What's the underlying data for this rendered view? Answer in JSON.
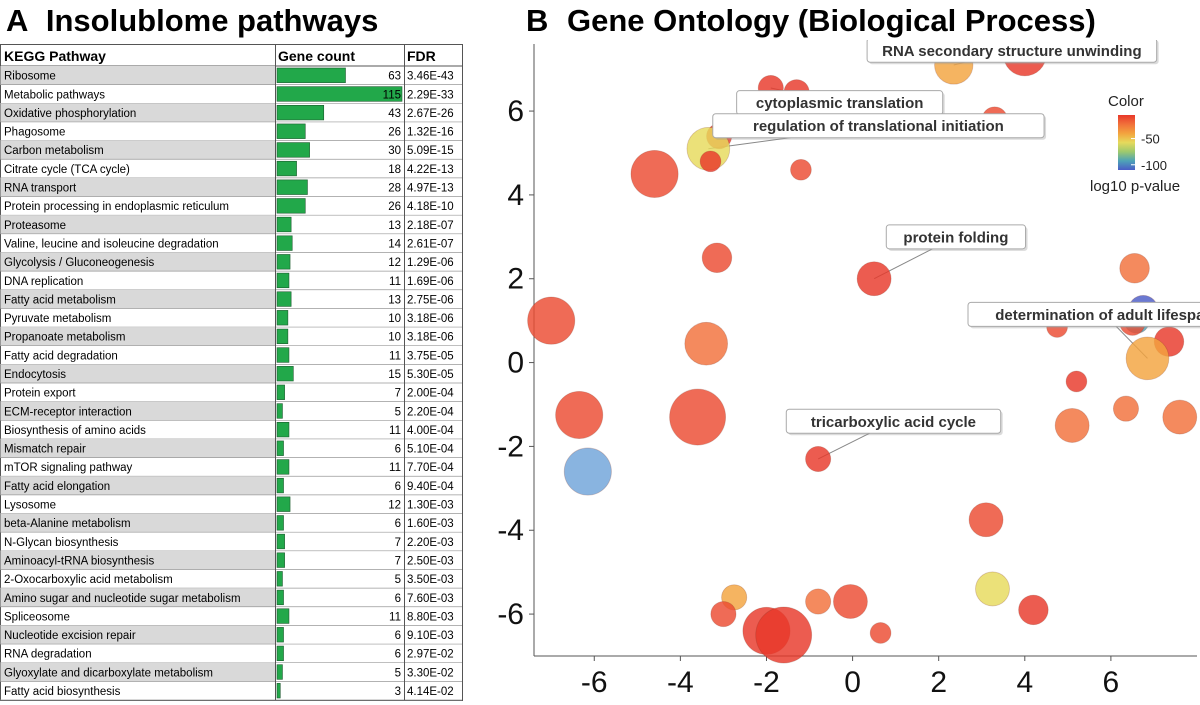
{
  "panel_a": {
    "letter": "A",
    "title": "Insolublome pathways"
  },
  "panel_b": {
    "letter": "B",
    "title": "Gene Ontology (Biological Process)"
  },
  "chart_data": [
    {
      "type": "table",
      "columns": [
        "KEGG Pathway",
        "Gene count",
        "FDR"
      ],
      "gene_count_bar_color": "#22a84a",
      "row_shade_color": "#d9d9d9",
      "rows": [
        {
          "pathway": "Ribosome",
          "count": 63,
          "fdr": "3.46E-43",
          "shaded": true
        },
        {
          "pathway": "Metabolic pathways",
          "count": 115,
          "fdr": "2.29E-33",
          "shaded": false
        },
        {
          "pathway": "Oxidative phosphorylation",
          "count": 43,
          "fdr": "2.67E-26",
          "shaded": true
        },
        {
          "pathway": "Phagosome",
          "count": 26,
          "fdr": "1.32E-16",
          "shaded": false
        },
        {
          "pathway": "Carbon metabolism",
          "count": 30,
          "fdr": "5.09E-15",
          "shaded": true
        },
        {
          "pathway": "Citrate cycle (TCA cycle)",
          "count": 18,
          "fdr": "4.22E-13",
          "shaded": false
        },
        {
          "pathway": "RNA transport",
          "count": 28,
          "fdr": "4.97E-13",
          "shaded": true
        },
        {
          "pathway": "Protein processing in endoplasmic reticulum",
          "count": 26,
          "fdr": "4.18E-10",
          "shaded": false
        },
        {
          "pathway": "Proteasome",
          "count": 13,
          "fdr": "2.18E-07",
          "shaded": true
        },
        {
          "pathway": "Valine, leucine and isoleucine degradation",
          "count": 14,
          "fdr": "2.61E-07",
          "shaded": false
        },
        {
          "pathway": "Glycolysis / Gluconeogenesis",
          "count": 12,
          "fdr": "1.29E-06",
          "shaded": true
        },
        {
          "pathway": "DNA replication",
          "count": 11,
          "fdr": "1.69E-06",
          "shaded": false
        },
        {
          "pathway": "Fatty acid metabolism",
          "count": 13,
          "fdr": "2.75E-06",
          "shaded": true
        },
        {
          "pathway": "Pyruvate metabolism",
          "count": 10,
          "fdr": "3.18E-06",
          "shaded": false
        },
        {
          "pathway": "Propanoate metabolism",
          "count": 10,
          "fdr": "3.18E-06",
          "shaded": true
        },
        {
          "pathway": "Fatty acid degradation",
          "count": 11,
          "fdr": "3.75E-05",
          "shaded": false
        },
        {
          "pathway": "Endocytosis",
          "count": 15,
          "fdr": "5.30E-05",
          "shaded": true
        },
        {
          "pathway": "Protein export",
          "count": 7,
          "fdr": "2.00E-04",
          "shaded": false
        },
        {
          "pathway": "ECM-receptor interaction",
          "count": 5,
          "fdr": "2.20E-04",
          "shaded": true
        },
        {
          "pathway": "Biosynthesis of amino acids",
          "count": 11,
          "fdr": "4.00E-04",
          "shaded": false
        },
        {
          "pathway": "Mismatch repair",
          "count": 6,
          "fdr": "5.10E-04",
          "shaded": true
        },
        {
          "pathway": "mTOR signaling pathway",
          "count": 11,
          "fdr": "7.70E-04",
          "shaded": false
        },
        {
          "pathway": "Fatty acid elongation",
          "count": 6,
          "fdr": "9.40E-04",
          "shaded": true
        },
        {
          "pathway": "Lysosome",
          "count": 12,
          "fdr": "1.30E-03",
          "shaded": false
        },
        {
          "pathway": "beta-Alanine metabolism",
          "count": 6,
          "fdr": "1.60E-03",
          "shaded": true
        },
        {
          "pathway": "N-Glycan biosynthesis",
          "count": 7,
          "fdr": "2.20E-03",
          "shaded": false
        },
        {
          "pathway": "Aminoacyl-tRNA biosynthesis",
          "count": 7,
          "fdr": "2.50E-03",
          "shaded": true
        },
        {
          "pathway": "2-Oxocarboxylic acid metabolism",
          "count": 5,
          "fdr": "3.50E-03",
          "shaded": false
        },
        {
          "pathway": "Amino sugar and nucleotide sugar metabolism",
          "count": 6,
          "fdr": "7.60E-03",
          "shaded": true
        },
        {
          "pathway": "Spliceosome",
          "count": 11,
          "fdr": "8.80E-03",
          "shaded": false
        },
        {
          "pathway": "Nucleotide excision repair",
          "count": 6,
          "fdr": "9.10E-03",
          "shaded": true
        },
        {
          "pathway": "RNA degradation",
          "count": 6,
          "fdr": "2.97E-02",
          "shaded": false
        },
        {
          "pathway": "Glyoxylate and dicarboxylate metabolism",
          "count": 5,
          "fdr": "3.30E-02",
          "shaded": true
        },
        {
          "pathway": "Fatty acid biosynthesis",
          "count": 3,
          "fdr": "4.14E-02",
          "shaded": false
        }
      ]
    },
    {
      "type": "scatter",
      "xlim": [
        -7.4,
        8.0
      ],
      "ylim": [
        -7.0,
        7.6
      ],
      "x_ticks": [
        -6,
        -4,
        -2,
        0,
        2,
        4,
        6
      ],
      "y_ticks": [
        -6,
        -4,
        -2,
        0,
        2,
        4,
        6
      ],
      "grid": false,
      "legend": {
        "title": "Color",
        "position": "top-right",
        "tick_labels": [
          "-50",
          "-100"
        ],
        "tick_values": [
          -50,
          -100
        ],
        "range": [
          -110,
          -5
        ],
        "caption": "log10 p-value",
        "colors": [
          "#e8382a",
          "#f1703a",
          "#f3a33e",
          "#e6da5c",
          "#9ec96d",
          "#4ea3b7",
          "#4a5cc7"
        ]
      },
      "points": [
        {
          "x": 4.0,
          "y": 7.35,
          "size": 7,
          "color": "#e8382a"
        },
        {
          "x": 2.35,
          "y": 7.1,
          "size": 6,
          "color": "#f3a33e"
        },
        {
          "x": -1.9,
          "y": 6.55,
          "size": 3,
          "color": "#e8382a"
        },
        {
          "x": -1.3,
          "y": 6.45,
          "size": 3,
          "color": "#e8382a"
        },
        {
          "x": 3.3,
          "y": 5.8,
          "size": 3,
          "color": "#ec4a31"
        },
        {
          "x": -3.1,
          "y": 5.4,
          "size": 3,
          "color": "#e8382a"
        },
        {
          "x": -3.35,
          "y": 5.1,
          "size": 7,
          "color": "#e6da5c"
        },
        {
          "x": -3.3,
          "y": 4.8,
          "size": 2,
          "color": "#e8382a"
        },
        {
          "x": -1.2,
          "y": 4.6,
          "size": 2,
          "color": "#ec4a31"
        },
        {
          "x": -4.6,
          "y": 4.5,
          "size": 8,
          "color": "#ec4a31"
        },
        {
          "x": -3.15,
          "y": 2.5,
          "size": 4,
          "color": "#ec4a31"
        },
        {
          "x": 0.5,
          "y": 2.0,
          "size": 5,
          "color": "#e8382a"
        },
        {
          "x": 6.55,
          "y": 2.25,
          "size": 4,
          "color": "#f1703a"
        },
        {
          "x": 6.75,
          "y": 1.25,
          "size": 4,
          "color": "#4a5cc7"
        },
        {
          "x": 6.6,
          "y": 1.0,
          "size": 3,
          "color": "#4ea3b7"
        },
        {
          "x": 6.5,
          "y": 0.95,
          "size": 3,
          "color": "#ec4a31"
        },
        {
          "x": -7.0,
          "y": 1.0,
          "size": 8,
          "color": "#ec4a31"
        },
        {
          "x": 4.75,
          "y": 0.85,
          "size": 2,
          "color": "#ec4a31"
        },
        {
          "x": 7.35,
          "y": 0.5,
          "size": 4,
          "color": "#e8382a"
        },
        {
          "x": -3.4,
          "y": 0.45,
          "size": 7,
          "color": "#f1703a"
        },
        {
          "x": 6.85,
          "y": 0.1,
          "size": 7,
          "color": "#f3a33e"
        },
        {
          "x": 5.2,
          "y": -0.45,
          "size": 2,
          "color": "#e8382a"
        },
        {
          "x": 6.35,
          "y": -1.1,
          "size": 3,
          "color": "#f1703a"
        },
        {
          "x": -3.6,
          "y": -1.3,
          "size": 10,
          "color": "#ec4a31"
        },
        {
          "x": -6.35,
          "y": -1.25,
          "size": 8,
          "color": "#ec4a31"
        },
        {
          "x": 5.1,
          "y": -1.5,
          "size": 5,
          "color": "#f1703a"
        },
        {
          "x": 7.6,
          "y": -1.3,
          "size": 5,
          "color": "#f1703a"
        },
        {
          "x": -0.8,
          "y": -2.3,
          "size": 3,
          "color": "#e8382a"
        },
        {
          "x": -6.15,
          "y": -2.6,
          "size": 8,
          "color": "#6fa3d9"
        },
        {
          "x": 3.1,
          "y": -3.75,
          "size": 5,
          "color": "#ec4a31"
        },
        {
          "x": 3.25,
          "y": -5.4,
          "size": 5,
          "color": "#e6da5c"
        },
        {
          "x": -2.75,
          "y": -5.6,
          "size": 3,
          "color": "#f3a33e"
        },
        {
          "x": -0.8,
          "y": -5.7,
          "size": 3,
          "color": "#f1703a"
        },
        {
          "x": -0.05,
          "y": -5.7,
          "size": 5,
          "color": "#ec4a31"
        },
        {
          "x": 4.2,
          "y": -5.9,
          "size": 4,
          "color": "#e8382a"
        },
        {
          "x": -3.0,
          "y": -6.0,
          "size": 3,
          "color": "#ec4a31"
        },
        {
          "x": -2.0,
          "y": -6.4,
          "size": 8,
          "color": "#e8382a"
        },
        {
          "x": -1.6,
          "y": -6.5,
          "size": 10,
          "color": "#e8382a"
        },
        {
          "x": 0.65,
          "y": -6.45,
          "size": 2,
          "color": "#ec4a31"
        }
      ],
      "annotations": [
        {
          "text": "RNA secondary structure unwinding",
          "label_x": 3.7,
          "label_y": 7.45,
          "target_x": 2.35,
          "target_y": 7.1
        },
        {
          "text": "cytoplasmic translation",
          "label_x": -0.3,
          "label_y": 6.2,
          "target_x": -1.9,
          "target_y": 6.55
        },
        {
          "text": "regulation of translational initiation",
          "label_x": 0.6,
          "label_y": 5.65,
          "target_x": -3.35,
          "target_y": 5.1
        },
        {
          "text": "protein folding",
          "label_x": 2.4,
          "label_y": 3.0,
          "target_x": 0.5,
          "target_y": 2.0
        },
        {
          "text": "determination of adult lifespan",
          "label_x": 5.85,
          "label_y": 1.15,
          "target_x": 6.85,
          "target_y": 0.1
        },
        {
          "text": "tricarboxylic acid cycle",
          "label_x": 0.95,
          "label_y": -1.4,
          "target_x": -0.8,
          "target_y": -2.3
        }
      ]
    }
  ]
}
